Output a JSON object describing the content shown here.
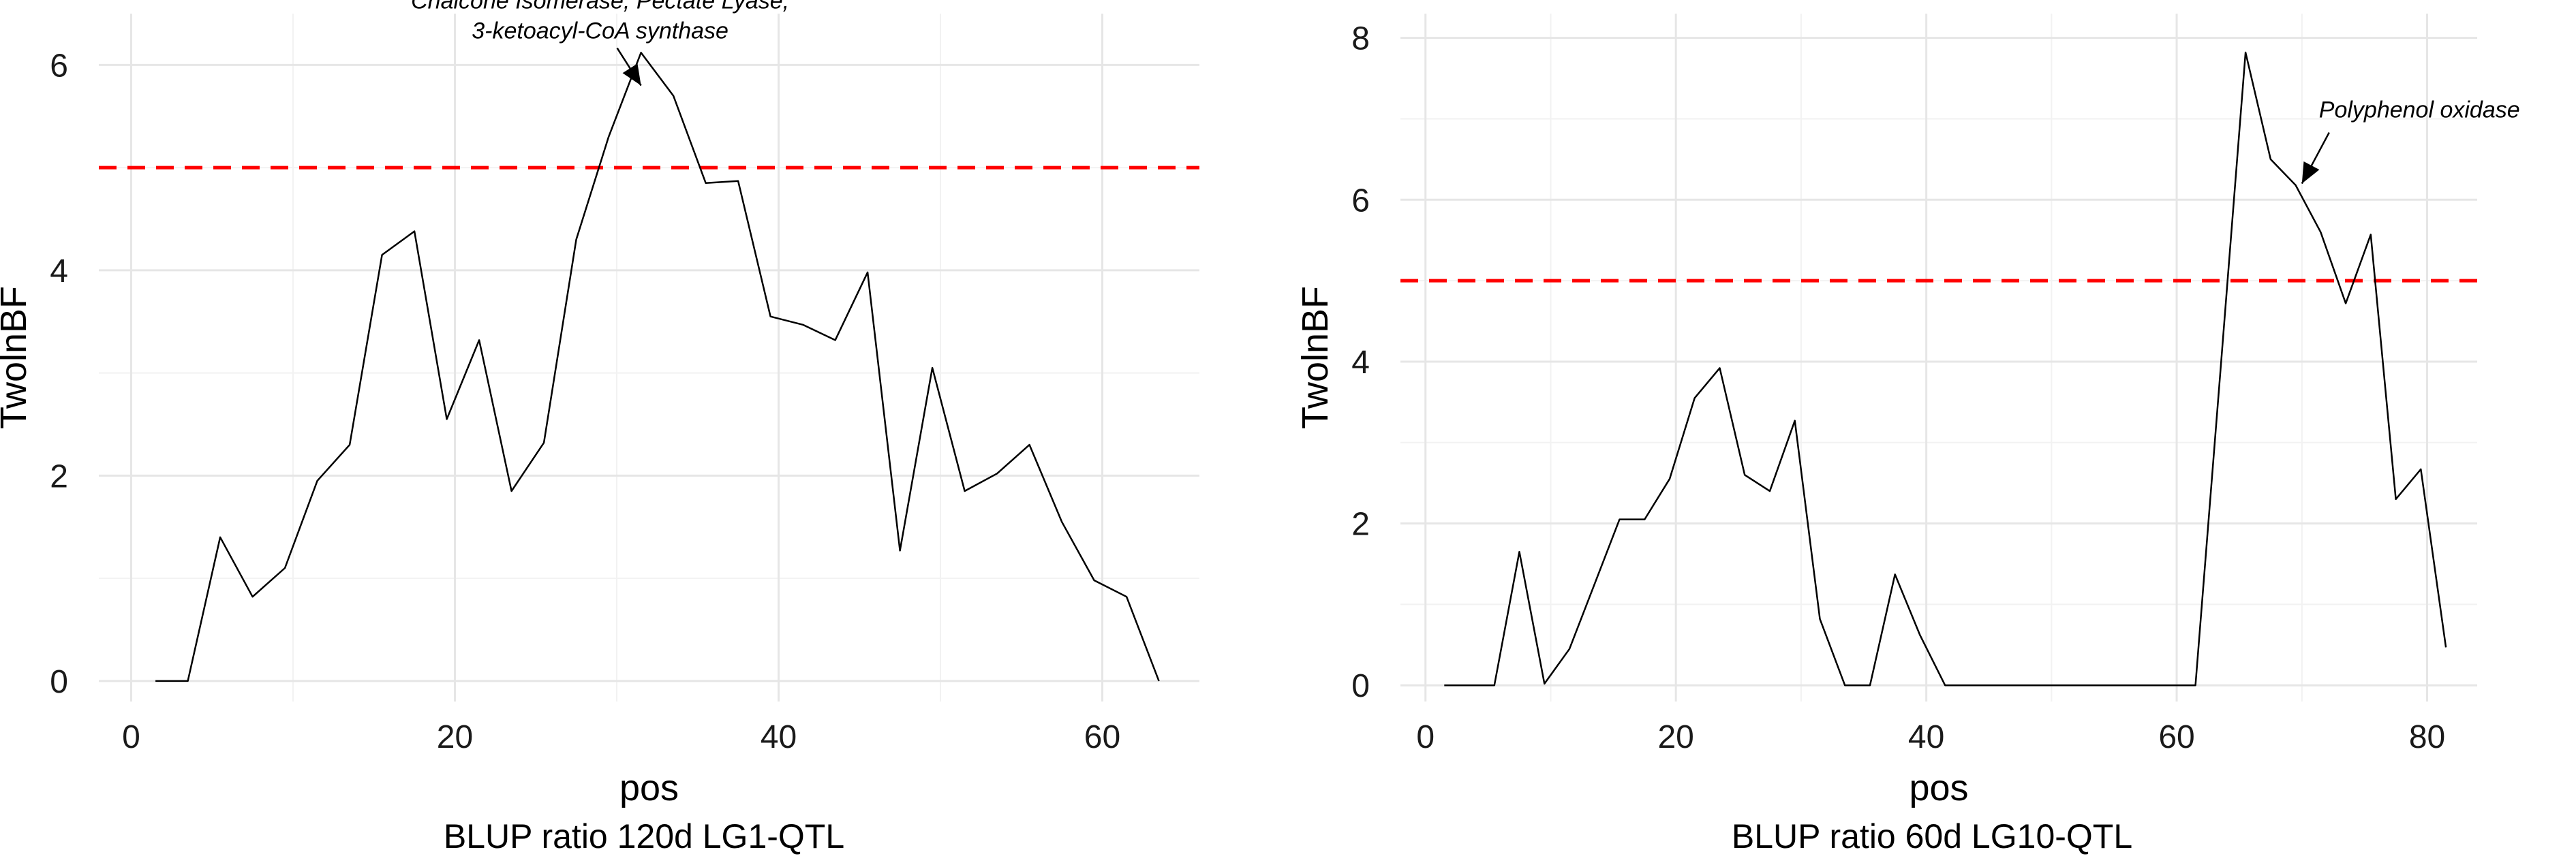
{
  "chart_data": [
    {
      "type": "line",
      "title": "BLUP ratio 120d LG1-QTL",
      "xlabel": "pos",
      "ylabel": "TwolnBF",
      "xlim": [
        -2,
        66
      ],
      "ylim": [
        -0.2,
        6.5
      ],
      "x_ticks": [
        0,
        20,
        40,
        60
      ],
      "y_ticks": [
        0,
        2,
        4,
        6
      ],
      "grid": true,
      "threshold": 5,
      "line_color": "#000000",
      "threshold_color": "#ff0000",
      "x": [
        1.5,
        3.5,
        5.5,
        7.5,
        9.5,
        11.5,
        13.5,
        15.5,
        17.5,
        19.5,
        21.5,
        23.5,
        25.5,
        27.5,
        29.5,
        31.5,
        33.5,
        35.5,
        37.5,
        39.5,
        41.5,
        43.5,
        45.5,
        47.5,
        49.5,
        51.5,
        53.5,
        55.5,
        57.5,
        59.5,
        61.5,
        63.5
      ],
      "y": [
        0.0,
        0.0,
        1.4,
        0.82,
        1.1,
        1.95,
        2.3,
        4.15,
        4.38,
        2.55,
        3.32,
        1.85,
        2.32,
        4.3,
        5.3,
        6.12,
        5.7,
        4.85,
        4.87,
        3.55,
        3.47,
        3.32,
        3.98,
        1.27,
        3.05,
        1.85,
        2.02,
        2.3,
        1.55,
        0.98,
        0.82,
        0.0
      ],
      "annotations": [
        {
          "lines": [
            "Chalcone Isomerase, Pectate Lyase,",
            "3-ketoacyl-CoA synthase"
          ],
          "arrow_to": [
            31.5,
            5.8
          ]
        }
      ]
    },
    {
      "type": "line",
      "title": "BLUP ratio 60d LG10-QTL",
      "xlabel": "pos",
      "ylabel": "TwolnBF",
      "xlim": [
        -2,
        84
      ],
      "ylim": [
        -0.2,
        8.3
      ],
      "x_ticks": [
        0,
        20,
        40,
        60,
        80
      ],
      "y_ticks": [
        0,
        2,
        4,
        6,
        8
      ],
      "grid": true,
      "threshold": 5,
      "line_color": "#000000",
      "threshold_color": "#ff0000",
      "x": [
        1.5,
        5.5,
        7.5,
        9.5,
        11.5,
        13.5,
        15.5,
        17.5,
        19.5,
        21.5,
        23.5,
        25.5,
        27.5,
        29.5,
        31.5,
        33.5,
        35.5,
        37.5,
        39.5,
        41.5,
        61.5,
        63.5,
        65.5,
        67.5,
        69.5,
        71.5,
        73.5,
        75.5,
        77.5,
        79.5,
        81.5
      ],
      "y": [
        0.0,
        0.0,
        1.65,
        0.02,
        0.45,
        1.25,
        2.05,
        2.05,
        2.55,
        3.55,
        3.92,
        2.6,
        2.4,
        3.27,
        0.82,
        0.0,
        0.0,
        1.37,
        0.62,
        0.0,
        0.0,
        3.9,
        7.82,
        6.5,
        6.18,
        5.6,
        4.72,
        5.57,
        2.3,
        2.67,
        0.47
      ],
      "annotations": [
        {
          "lines": [
            "Polyphenol oxidase"
          ],
          "arrow_to": [
            70,
            6.2
          ]
        }
      ]
    }
  ]
}
